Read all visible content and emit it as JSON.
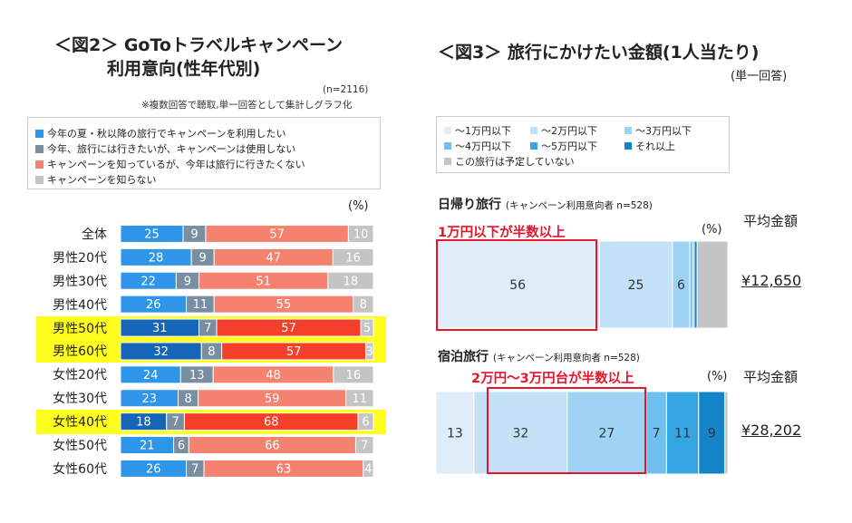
{
  "left": {
    "title_line1": "＜図2＞ GoToトラベルキャンペーン",
    "title_line2": "利用意向(性年代別)",
    "n_note": "(n=2116)",
    "method_note": "※複数回答で聴取,単一回答として集計しグラフ化",
    "unit": "(%)",
    "legend": [
      {
        "label": "今年の夏・秋以降の旅行でキャンペーンを利用したい",
        "color": "#2f95e8"
      },
      {
        "label": "今年、旅行には行きたいが、キャンペーンは使用しない",
        "color": "#7a8ea2"
      },
      {
        "label": "キャンペーンを知っているが、今年は旅行に行きたくない",
        "color": "#f4826f"
      },
      {
        "label": "キャンペーンを知らない",
        "color": "#c4c4c4"
      }
    ]
  },
  "right": {
    "title": "＜図3＞ 旅行にかけたい金額(1人当たり)",
    "note": "(単一回答)",
    "unit": "(%)",
    "legend": [
      {
        "label": "～1万円以下",
        "color": "#deedf8"
      },
      {
        "label": "～2万円以下",
        "color": "#c3e2f7"
      },
      {
        "label": "～3万円以下",
        "color": "#9fd3f4"
      },
      {
        "label": "～4万円以下",
        "color": "#6dc0ef"
      },
      {
        "label": "～5万円以下",
        "color": "#36a5e4"
      },
      {
        "label": "それ以上",
        "color": "#1484c8"
      },
      {
        "label": "この旅行は予定していない",
        "color": "#c4c4c4"
      }
    ],
    "avg_label": "平均金額",
    "day": {
      "label": "日帰り旅行",
      "note": "(キャンペーン利用意向者 n=528)",
      "highlight": "1万円以下が半数以上",
      "avg": "¥12,650"
    },
    "stay": {
      "label": "宿泊旅行",
      "note": "(キャンペーン利用意向者 n=528)",
      "highlight": "2万円～3万円台が半数以上",
      "avg": "¥28,202"
    }
  },
  "chart_data": [
    {
      "type": "bar",
      "orientation": "horizontal-stacked-100",
      "title": "＜図2＞ GoToトラベルキャンペーン 利用意向(性年代別)",
      "categories": [
        "全体",
        "男性20代",
        "男性30代",
        "男性40代",
        "男性50代",
        "男性60代",
        "女性20代",
        "女性30代",
        "女性40代",
        "女性50代",
        "女性60代"
      ],
      "highlighted": [
        "男性50代",
        "男性60代",
        "女性40代"
      ],
      "highlight_colors": [
        "#1565b8",
        "#7a8ea2",
        "#f4402a"
      ],
      "series": [
        {
          "name": "今年の夏・秋以降の旅行でキャンペーンを利用したい",
          "values": [
            25,
            28,
            22,
            26,
            31,
            32,
            24,
            23,
            18,
            21,
            26
          ]
        },
        {
          "name": "今年、旅行には行きたいが、キャンペーンは使用しない",
          "values": [
            9,
            9,
            9,
            11,
            7,
            8,
            13,
            8,
            7,
            6,
            7
          ]
        },
        {
          "name": "キャンペーンを知っているが、今年は旅行に行きたくない",
          "values": [
            57,
            47,
            51,
            55,
            57,
            57,
            48,
            59,
            68,
            66,
            63
          ]
        },
        {
          "name": "キャンペーンを知らない",
          "values": [
            10,
            16,
            18,
            8,
            5,
            3,
            16,
            11,
            6,
            7,
            4
          ]
        }
      ],
      "ylim": [
        0,
        100
      ]
    },
    {
      "type": "bar",
      "orientation": "horizontal-stacked-100",
      "title": "日帰り旅行",
      "series": [
        {
          "name": "～1万円以下",
          "value": 56,
          "label": "56"
        },
        {
          "name": "～2万円以下",
          "value": 25,
          "label": "25"
        },
        {
          "name": "～3万円以下",
          "value": 6,
          "label": "6"
        },
        {
          "name": "～4万円以下",
          "value": 1,
          "label": ""
        },
        {
          "name": "～5万円以下",
          "value": 0.5,
          "label": ""
        },
        {
          "name": "それ以上",
          "value": 1,
          "label": ""
        },
        {
          "name": "この旅行は予定していない",
          "value": 10.5,
          "label": ""
        }
      ]
    },
    {
      "type": "bar",
      "orientation": "horizontal-stacked-100",
      "title": "宿泊旅行",
      "series": [
        {
          "name": "～1万円以下",
          "value": 13,
          "label": "13"
        },
        {
          "name": "～2万円以下",
          "value": 32,
          "label": "32"
        },
        {
          "name": "～3万円以下",
          "value": 27,
          "label": "27"
        },
        {
          "name": "～4万円以下",
          "value": 7,
          "label": "7"
        },
        {
          "name": "～5万円以下",
          "value": 11,
          "label": "11"
        },
        {
          "name": "それ以上",
          "value": 9,
          "label": "9"
        },
        {
          "name": "この旅行は予定していない",
          "value": 1,
          "label": ""
        }
      ]
    }
  ]
}
